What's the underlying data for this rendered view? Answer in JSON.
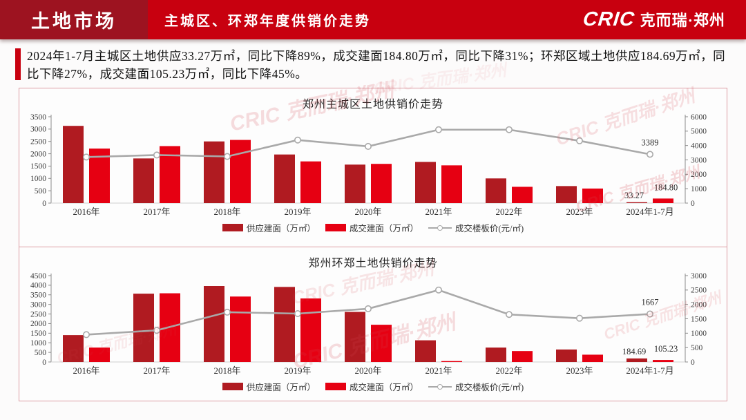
{
  "header": {
    "section_label": "土地市场",
    "title": "主城区、环郑年度供销价走势",
    "logo_mark": "CRIC",
    "logo_name": "克而瑞·郑州"
  },
  "summary": {
    "text": "2024年1-7月主城区土地供应33.27万㎡，同比下降89%，成交建面184.80万㎡，同比下降31%；环郑区域土地供应184.69万㎡，同比下降27%，成交建面105.23万㎡，同比下降45%。"
  },
  "watermark": "CRIC 克而瑞·郑州",
  "colors": {
    "header_dark": "#9d1320",
    "header_red": "#c8000f",
    "accent_red": "#c8000f",
    "supply_bar": "#b01b21",
    "transaction_bar": "#e60012",
    "price_line": "#a9a9a9",
    "panel_border": "#dc9aa2"
  },
  "chart_data": [
    {
      "type": "bar+line",
      "title": "郑州主城区土地供销价走势",
      "categories": [
        "2016年",
        "2017年",
        "2018年",
        "2019年",
        "2020年",
        "2021年",
        "2022年",
        "2023年",
        "2024年1-7月"
      ],
      "series": [
        {
          "name": "供应建面（万㎡）",
          "type": "bar",
          "axis": "left",
          "values": [
            3130,
            1810,
            2500,
            1970,
            1560,
            1670,
            1000,
            690,
            33.27
          ]
        },
        {
          "name": "成交建面（万㎡）",
          "type": "bar",
          "axis": "left",
          "values": [
            2210,
            2310,
            2560,
            1690,
            1590,
            1530,
            660,
            590,
            184.8
          ]
        },
        {
          "name": "成交楼板价(元/㎡)",
          "type": "line",
          "axis": "right",
          "values": [
            3200,
            3340,
            3240,
            4380,
            3940,
            5100,
            5100,
            4330,
            3389
          ]
        }
      ],
      "left_axis": {
        "min": 0,
        "max": 3500,
        "step": 500
      },
      "right_axis": {
        "min": 0,
        "max": 6000,
        "step": 1000
      },
      "grid": false,
      "legend_position": "bottom",
      "annotations": {
        "supply_label": "33.27",
        "transaction_label": "184.80",
        "line_label": "3389"
      }
    },
    {
      "type": "bar+line",
      "title": "郑州环郑土地供销价走势",
      "categories": [
        "2016年",
        "2017年",
        "2018年",
        "2019年",
        "2020年",
        "2021年",
        "2022年",
        "2023年",
        "2024年1-7月"
      ],
      "series": [
        {
          "name": "供应建面（万㎡）",
          "type": "bar",
          "axis": "left",
          "values": [
            1400,
            3560,
            3960,
            3910,
            2610,
            1130,
            750,
            650,
            184.69
          ]
        },
        {
          "name": "成交建面（万㎡）",
          "type": "bar",
          "axis": "left",
          "values": [
            750,
            3580,
            3410,
            3310,
            1940,
            25,
            570,
            380,
            105.23
          ]
        },
        {
          "name": "成交楼板价(元/㎡)",
          "type": "line",
          "axis": "right",
          "values": [
            950,
            1100,
            1730,
            1680,
            1850,
            2500,
            1650,
            1520,
            1667
          ]
        }
      ],
      "left_axis": {
        "min": 0,
        "max": 4500,
        "step": 500
      },
      "right_axis": {
        "min": 0,
        "max": 3000,
        "step": 500
      },
      "grid": false,
      "legend_position": "bottom",
      "annotations": {
        "supply_label": "184.69",
        "transaction_label": "105.23",
        "line_label": "1667"
      }
    }
  ]
}
